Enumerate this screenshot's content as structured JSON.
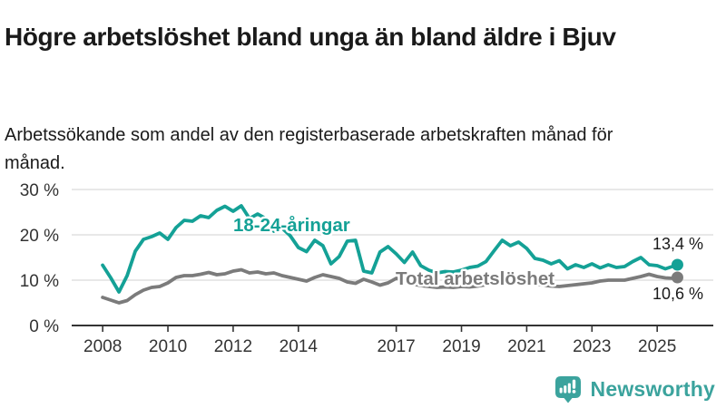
{
  "header": {
    "title": "Högre arbetslöshet bland unga än bland äldre i Bjuv",
    "subtitle": "Arbetssökande som andel av den registerbaserade arbetskraften månad för månad."
  },
  "branding": {
    "name": "Newsworthy",
    "color": "#3BA39D",
    "icon": "bar-chart-speech-bubble"
  },
  "chart_data": {
    "type": "line",
    "title": "Högre arbetslöshet bland unga än bland äldre i Bjuv",
    "subtitle": "Arbetssökande som andel av den registerbaserade arbetskraften månad för månad.",
    "xlabel": "",
    "ylabel": "",
    "y_unit": "%",
    "grid": "horizontal",
    "legend_position": "inline-labels",
    "xlim": [
      2007.05,
      2026.72
    ],
    "ylim": [
      0,
      33.8
    ],
    "x_ticks": [
      2008,
      2010,
      2012,
      2014,
      2017,
      2019,
      2021,
      2023,
      2025
    ],
    "x_tick_labels": [
      "2008",
      "2010",
      "2012",
      "2014",
      "2017",
      "2019",
      "2021",
      "2023",
      "2025"
    ],
    "y_ticks": [
      0,
      10,
      20,
      30
    ],
    "y_tick_labels": [
      "0 %",
      "10 %",
      "20 %",
      "30 %"
    ],
    "colors": {
      "grid": "#DBDBDB",
      "axis": "#333333",
      "tick_text": "#333333",
      "end_label_text": "#1a1a1a",
      "label_halo": "#ffffff"
    },
    "x": [
      2008.0,
      2008.25,
      2008.5,
      2008.75,
      2009.0,
      2009.25,
      2009.5,
      2009.75,
      2010.0,
      2010.25,
      2010.5,
      2010.75,
      2011.0,
      2011.25,
      2011.5,
      2011.75,
      2012.0,
      2012.25,
      2012.5,
      2012.75,
      2013.0,
      2013.25,
      2013.5,
      2013.75,
      2014.0,
      2014.25,
      2014.5,
      2014.75,
      2015.0,
      2015.25,
      2015.5,
      2015.75,
      2016.0,
      2016.25,
      2016.5,
      2016.75,
      2017.0,
      2017.25,
      2017.5,
      2017.75,
      2018.0,
      2018.25,
      2018.5,
      2018.75,
      2019.0,
      2019.25,
      2019.5,
      2019.75,
      2020.0,
      2020.25,
      2020.5,
      2020.75,
      2021.0,
      2021.25,
      2021.5,
      2021.75,
      2022.0,
      2022.25,
      2022.5,
      2022.75,
      2023.0,
      2023.25,
      2023.5,
      2023.75,
      2024.0,
      2024.25,
      2024.5,
      2024.75,
      2025.0,
      2025.25,
      2025.5,
      2025.62
    ],
    "series": [
      {
        "name": "18-24-åringar",
        "color": "#14A196",
        "end_label": "13,4 %",
        "end_value": 13.4,
        "values": [
          13.3,
          10.5,
          7.4,
          11.0,
          16.4,
          19.0,
          19.6,
          20.4,
          19.0,
          21.6,
          23.2,
          23.0,
          24.2,
          23.8,
          25.4,
          26.3,
          25.2,
          26.4,
          23.6,
          24.6,
          23.6,
          20.8,
          21.5,
          19.8,
          17.2,
          16.3,
          18.8,
          17.6,
          13.6,
          15.2,
          18.6,
          18.8,
          12.0,
          11.6,
          16.2,
          17.4,
          15.8,
          13.9,
          16.2,
          13.2,
          12.2,
          11.6,
          11.9,
          11.8,
          12.2,
          12.8,
          13.1,
          14.1,
          16.5,
          18.8,
          17.6,
          18.4,
          17.0,
          14.8,
          14.4,
          13.6,
          14.3,
          12.5,
          13.4,
          12.8,
          13.6,
          12.7,
          13.4,
          12.8,
          13.0,
          14.1,
          15.0,
          13.4,
          13.2,
          12.5,
          13.1,
          13.4
        ]
      },
      {
        "name": "Total arbetslöshet",
        "color": "#7B7B7B",
        "end_label": "10,6 %",
        "end_value": 10.6,
        "values": [
          6.2,
          5.6,
          5.0,
          5.5,
          6.8,
          7.8,
          8.4,
          8.6,
          9.4,
          10.6,
          11.0,
          11.0,
          11.3,
          11.7,
          11.2,
          11.4,
          12.0,
          12.3,
          11.6,
          11.8,
          11.4,
          11.6,
          11.0,
          10.6,
          10.2,
          9.8,
          10.6,
          11.2,
          10.8,
          10.4,
          9.6,
          9.3,
          10.2,
          9.6,
          8.9,
          9.4,
          10.4,
          10.0,
          9.2,
          8.8,
          8.6,
          8.4,
          8.5,
          8.4,
          8.6,
          8.5,
          8.7,
          9.0,
          9.8,
          10.4,
          10.2,
          10.0,
          9.6,
          9.2,
          8.9,
          8.7,
          8.6,
          8.8,
          9.0,
          9.2,
          9.4,
          9.8,
          10.0,
          10.0,
          10.0,
          10.4,
          10.8,
          11.3,
          10.8,
          10.5,
          10.4,
          10.6
        ]
      }
    ]
  }
}
